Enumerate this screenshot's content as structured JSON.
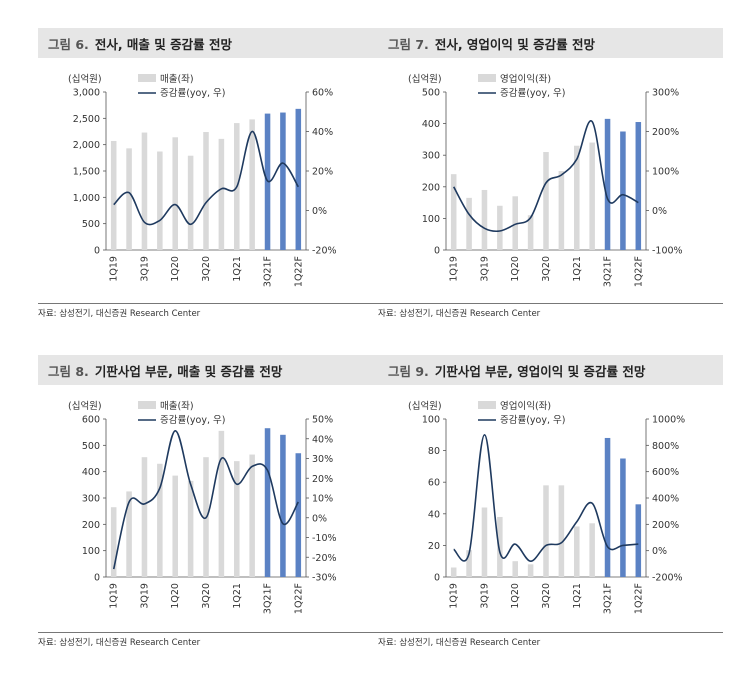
{
  "colors": {
    "bar_actual": "#d9d9d9",
    "bar_forecast": "#5b82c4",
    "line": "#1f3a5f"
  },
  "chart_data": [
    {
      "id": "c6",
      "type": "bar",
      "fig_label": "그림 6.",
      "title": "전사, 매출 및 증감률 전망",
      "unit": "(십억원)",
      "legend_bar": "매출(좌)",
      "legend_line": "증감률(yoy, 우)",
      "source": "자료: 삼성전기, 대신증권 Research Center",
      "categories": [
        "1Q19",
        "2Q19",
        "3Q19",
        "4Q19",
        "1Q20",
        "2Q20",
        "3Q20",
        "4Q20",
        "1Q21",
        "2Q21",
        "3Q21F",
        "4Q21F",
        "1Q22F"
      ],
      "xticks": [
        "1Q19",
        "3Q19",
        "1Q20",
        "3Q20",
        "1Q21",
        "3Q21F",
        "1Q22F"
      ],
      "values": [
        2070,
        1930,
        2230,
        1870,
        2140,
        1790,
        2240,
        2110,
        2410,
        2480,
        2590,
        2610,
        2680
      ],
      "forecast_start": 10,
      "yoy": [
        3,
        9,
        -6,
        -5,
        3,
        -7,
        4,
        11,
        12,
        40,
        15,
        24,
        12
      ],
      "ylim": [
        0,
        3000
      ],
      "yticks": [
        "0",
        "500",
        "1,000",
        "1,500",
        "2,000",
        "2,500",
        "3,000"
      ],
      "y2lim": [
        -20,
        60
      ],
      "y2ticks": [
        "-20%",
        "0%",
        "20%",
        "40%",
        "60%"
      ]
    },
    {
      "id": "c7",
      "type": "bar",
      "fig_label": "그림 7.",
      "title": "전사, 영업이익 및 증감률 전망",
      "unit": "(십억원)",
      "legend_bar": "영업이익(좌)",
      "legend_line": "증감률(yoy, 우)",
      "source": "자료: 삼성전기, 대신증권 Research Center",
      "categories": [
        "1Q19",
        "2Q19",
        "3Q19",
        "4Q19",
        "1Q20",
        "2Q20",
        "3Q20",
        "4Q20",
        "1Q21",
        "2Q21",
        "3Q21F",
        "4Q21F",
        "1Q22F"
      ],
      "xticks": [
        "1Q19",
        "3Q19",
        "1Q20",
        "3Q20",
        "1Q21",
        "3Q21F",
        "1Q22F"
      ],
      "values": [
        240,
        165,
        190,
        140,
        170,
        110,
        310,
        250,
        330,
        340,
        415,
        375,
        405
      ],
      "forecast_start": 10,
      "yoy": [
        60,
        -10,
        -45,
        -52,
        -35,
        -18,
        70,
        90,
        130,
        225,
        30,
        40,
        20
      ],
      "ylim": [
        0,
        500
      ],
      "yticks": [
        "0",
        "100",
        "200",
        "300",
        "400",
        "500"
      ],
      "y2lim": [
        -100,
        300
      ],
      "y2ticks": [
        "-100%",
        "0%",
        "100%",
        "200%",
        "300%"
      ]
    },
    {
      "id": "c8",
      "type": "bar",
      "fig_label": "그림 8.",
      "title": "기판사업 부문, 매출 및 증감률 전망",
      "unit": "(십억원)",
      "legend_bar": "매출(좌)",
      "legend_line": "증감률(yoy, 우)",
      "source": "자료: 삼성전기, 대신증권 Research Center",
      "categories": [
        "1Q19",
        "2Q19",
        "3Q19",
        "4Q19",
        "1Q20",
        "2Q20",
        "3Q20",
        "4Q20",
        "1Q21",
        "2Q21",
        "3Q21F",
        "4Q21F",
        "1Q22F"
      ],
      "xticks": [
        "1Q19",
        "3Q19",
        "1Q20",
        "3Q20",
        "1Q21",
        "3Q21F",
        "1Q22F"
      ],
      "values": [
        265,
        325,
        455,
        430,
        385,
        365,
        455,
        555,
        440,
        465,
        565,
        540,
        470
      ],
      "forecast_start": 10,
      "yoy": [
        -26,
        8,
        7,
        15,
        44,
        17,
        0,
        30,
        17,
        26,
        24,
        -3,
        8
      ],
      "ylim": [
        0,
        600
      ],
      "yticks": [
        "0",
        "100",
        "200",
        "300",
        "400",
        "500",
        "600"
      ],
      "y2lim": [
        -30,
        50
      ],
      "y2ticks": [
        "-30%",
        "-20%",
        "-10%",
        "0%",
        "10%",
        "20%",
        "30%",
        "40%",
        "50%"
      ]
    },
    {
      "id": "c9",
      "type": "bar",
      "fig_label": "그림 9.",
      "title": "기판사업 부문, 영업이익 및 증감률 전망",
      "unit": "(십억원)",
      "legend_bar": "영업이익(좌)",
      "legend_line": "증감률(yoy, 우)",
      "source": "자료: 삼성전기, 대신증권 Research Center",
      "categories": [
        "1Q19",
        "2Q19",
        "3Q19",
        "4Q19",
        "1Q20",
        "2Q20",
        "3Q20",
        "4Q20",
        "1Q21",
        "2Q21",
        "3Q21F",
        "4Q21F",
        "1Q22F"
      ],
      "xticks": [
        "1Q19",
        "3Q19",
        "1Q20",
        "3Q20",
        "1Q21",
        "3Q21F",
        "1Q22F"
      ],
      "values": [
        6,
        17,
        44,
        38,
        10,
        8,
        58,
        58,
        32,
        34,
        88,
        75,
        46
      ],
      "forecast_start": 10,
      "yoy": [
        10,
        -20,
        880,
        -10,
        50,
        -80,
        40,
        60,
        220,
        360,
        30,
        40,
        50
      ],
      "ylim": [
        0,
        100
      ],
      "yticks": [
        "0",
        "20",
        "40",
        "60",
        "80",
        "100"
      ],
      "y2lim": [
        -200,
        1000
      ],
      "y2ticks": [
        "-200%",
        "0%",
        "200%",
        "400%",
        "600%",
        "800%",
        "1000%"
      ]
    }
  ]
}
